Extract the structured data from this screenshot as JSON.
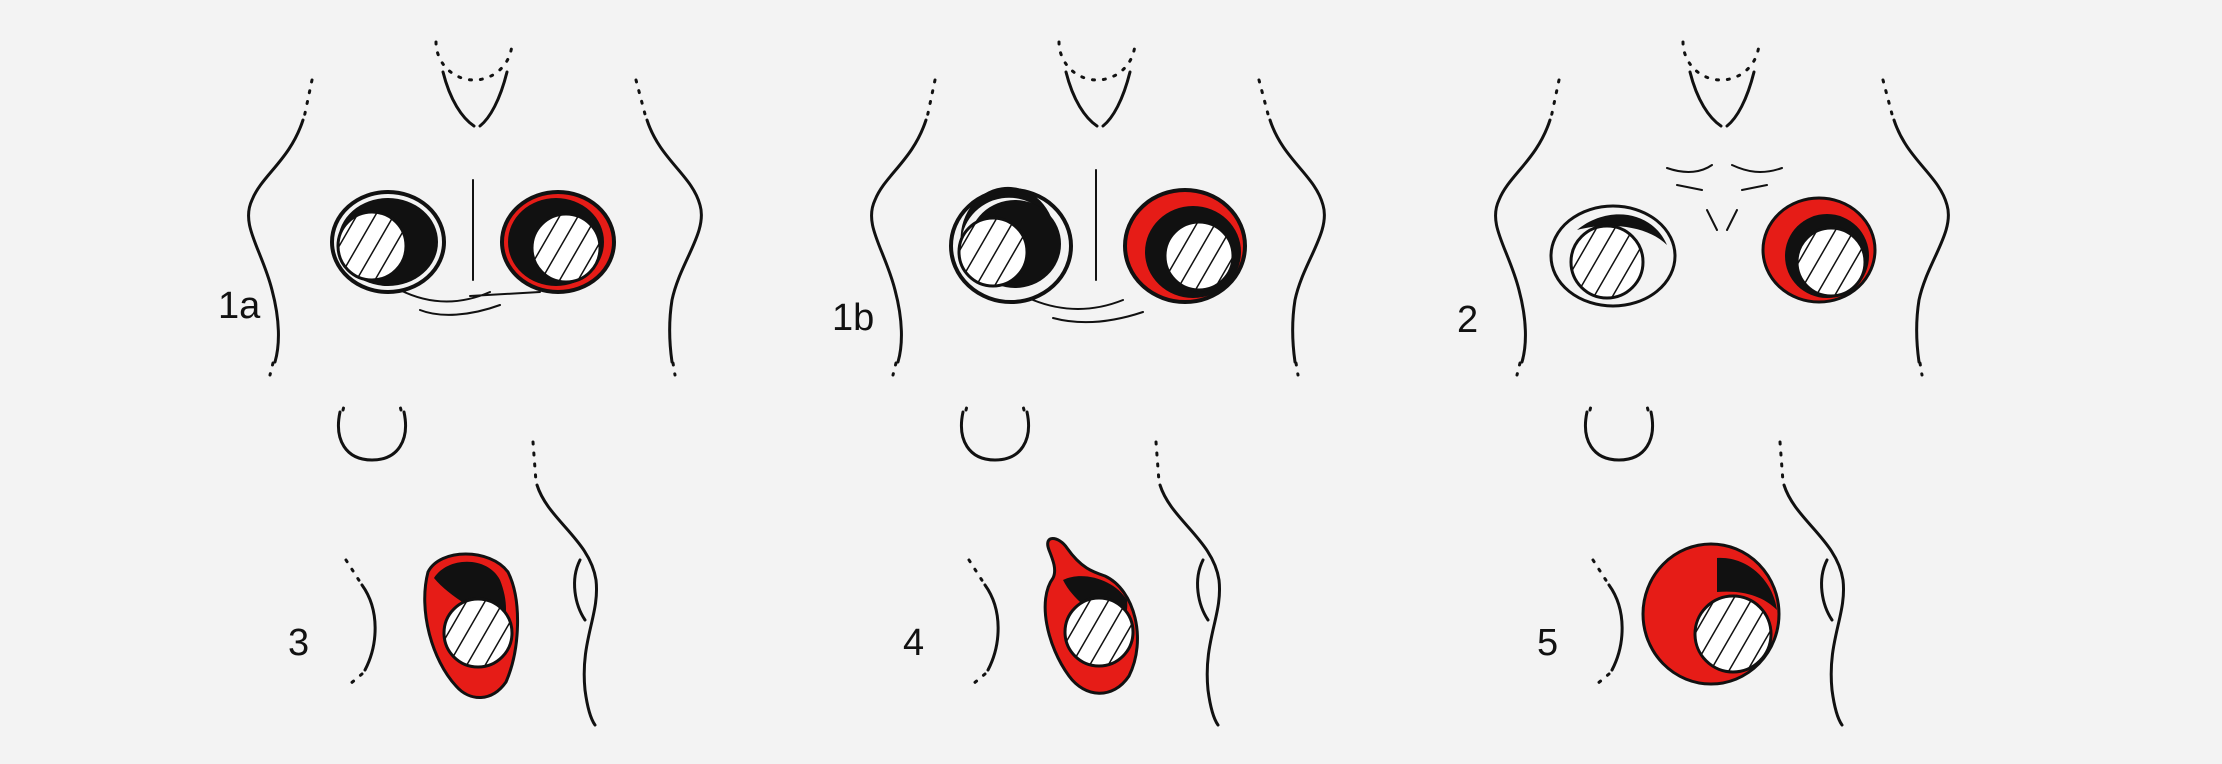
{
  "colors": {
    "background": "#f3f3f3",
    "outline": "#111111",
    "highlight": "#e61c17",
    "hatch_fill": "#ffffff"
  },
  "panels": [
    {
      "id": "1a",
      "label": "1a"
    },
    {
      "id": "1b",
      "label": "1b"
    },
    {
      "id": "2",
      "label": "2"
    },
    {
      "id": "3",
      "label": "3"
    },
    {
      "id": "4",
      "label": "4"
    },
    {
      "id": "5",
      "label": "5"
    }
  ]
}
